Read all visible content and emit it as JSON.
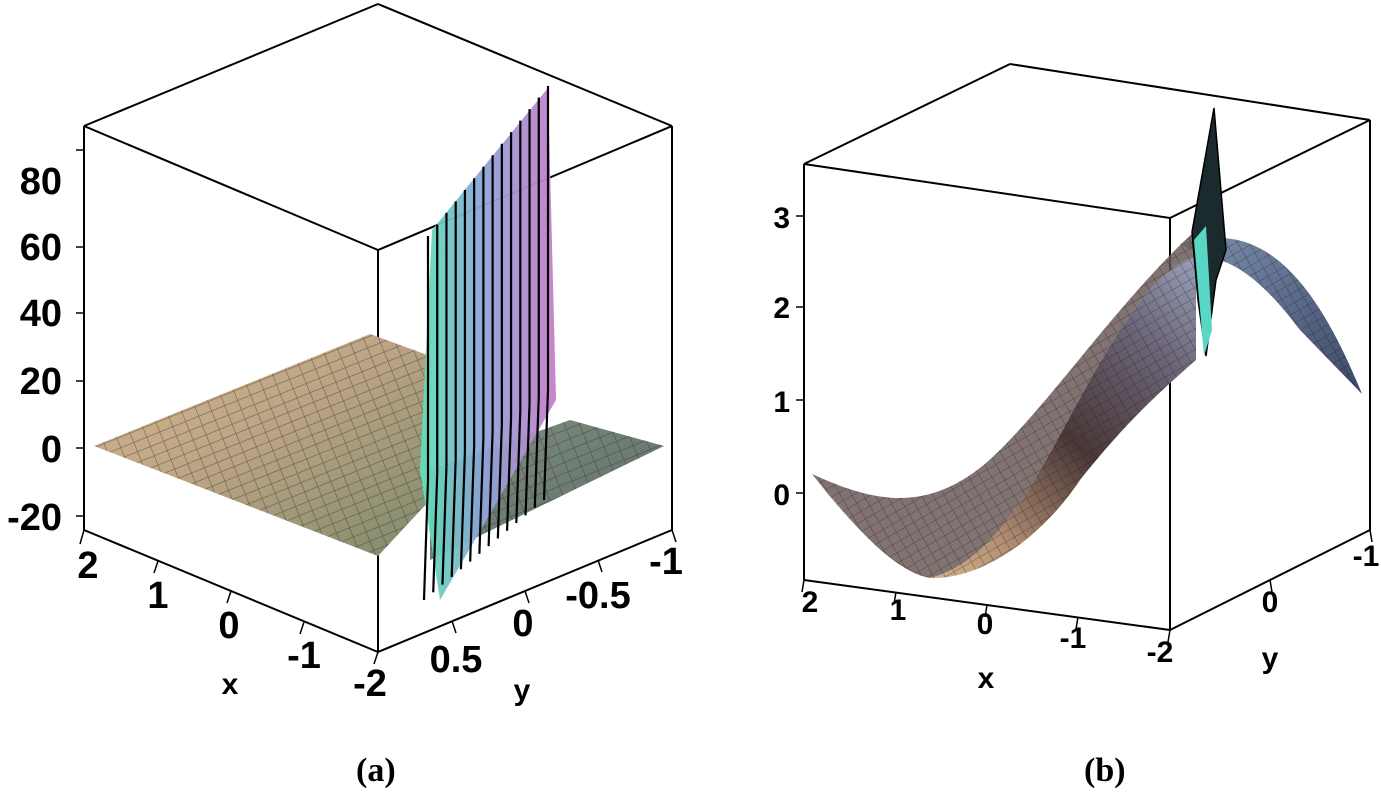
{
  "chart_data": [
    {
      "type": "surface3d",
      "panel_label": "(a)",
      "xlabel": "x",
      "ylabel": "y",
      "x_ticks": [
        "2",
        "1",
        "0",
        "-1",
        "-2"
      ],
      "y_ticks": [
        "0.5",
        "0",
        "-0.5",
        "-1"
      ],
      "z_ticks": [
        "80",
        "60",
        "40",
        "20",
        "0",
        "-20"
      ],
      "x_range": [
        -2,
        2
      ],
      "y_range": [
        -1,
        1
      ],
      "z_range": [
        -25,
        95
      ],
      "surface": "near-flat plane around 0 with a sharp ridge of spikes along y ≈ 0.5 reaching up to about 90 and down to about -22"
    },
    {
      "type": "surface3d",
      "panel_label": "(b)",
      "xlabel": "x",
      "ylabel": "y",
      "x_ticks": [
        "2",
        "1",
        "0",
        "-1",
        "-2"
      ],
      "y_ticks": [
        "0",
        "-1"
      ],
      "z_ticks": [
        "3",
        "2",
        "1",
        "0"
      ],
      "x_range": [
        -2,
        2
      ],
      "y_range": [
        -1,
        1
      ],
      "z_range": [
        -0.7,
        3.5
      ],
      "surface": "smooth sine-like sheet with minimum ≈ -0.6 near x ≈ 1 and maximum ≈ 2.7 near x ≈ -2, with a narrow spike up to about 3.4 near the back corner"
    }
  ]
}
